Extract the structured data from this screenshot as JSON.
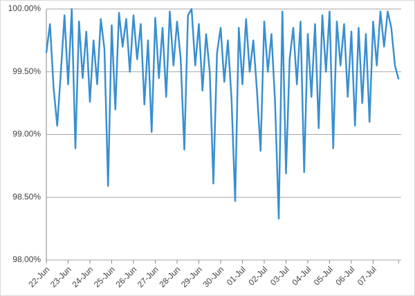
{
  "chart_data": {
    "type": "line",
    "categories": [
      "22-Jun",
      null,
      null,
      null,
      null,
      null,
      "23-Jun",
      null,
      null,
      null,
      null,
      null,
      "24-Jun",
      null,
      null,
      null,
      null,
      null,
      "25-Jun",
      null,
      null,
      null,
      null,
      null,
      "26-Jun",
      null,
      null,
      null,
      null,
      null,
      "27-Jun",
      null,
      null,
      null,
      null,
      null,
      "28-Jun",
      null,
      null,
      null,
      null,
      null,
      "29-Jun",
      null,
      null,
      null,
      null,
      null,
      "30-Jun",
      null,
      null,
      null,
      null,
      null,
      "01-Jul",
      null,
      null,
      null,
      null,
      null,
      "02-Jul",
      null,
      null,
      null,
      null,
      null,
      "03-Jul",
      null,
      null,
      null,
      null,
      null,
      "04-Jul",
      null,
      null,
      null,
      null,
      null,
      "05-Jul",
      null,
      null,
      null,
      null,
      null,
      "06-Jul",
      null,
      null,
      null,
      null,
      null,
      "07-Jul",
      null,
      null,
      null,
      null,
      null,
      null,
      null
    ],
    "series": [
      {
        "color": "#3a8fd0",
        "values": [
          99.65,
          99.88,
          99.37,
          99.07,
          99.5,
          99.95,
          99.4,
          100.0,
          98.89,
          99.9,
          99.45,
          99.82,
          99.26,
          99.75,
          99.4,
          99.92,
          99.68,
          98.59,
          99.87,
          99.2,
          99.97,
          99.7,
          99.92,
          99.5,
          99.95,
          99.6,
          99.88,
          99.24,
          99.75,
          99.02,
          99.93,
          99.45,
          99.85,
          99.3,
          99.98,
          99.55,
          99.9,
          99.6,
          98.88,
          99.95,
          100.0,
          99.55,
          99.88,
          99.35,
          99.8,
          99.5,
          98.61,
          99.65,
          99.85,
          99.42,
          99.75,
          99.28,
          98.47,
          99.85,
          99.4,
          99.92,
          99.5,
          99.75,
          99.35,
          98.87,
          99.9,
          99.5,
          99.8,
          99.25,
          98.33,
          99.98,
          98.69,
          99.6,
          99.85,
          99.4,
          99.9,
          98.7,
          99.8,
          99.3,
          99.88,
          99.05,
          99.95,
          99.5,
          99.98,
          98.89,
          99.9,
          99.55,
          99.88,
          99.3,
          99.82,
          99.07,
          99.85,
          99.25,
          99.8,
          99.1,
          99.9,
          99.55,
          99.98,
          99.7,
          99.98,
          99.85,
          99.55,
          99.44
        ]
      }
    ],
    "ylim": [
      98,
      100
    ],
    "yticks": [
      {
        "value": 98,
        "label": "98.00%"
      },
      {
        "value": 98.5,
        "label": "98.50%"
      },
      {
        "value": 99,
        "label": "99.00%"
      },
      {
        "value": 99.5,
        "label": "99.50%"
      },
      {
        "value": 100,
        "label": "100.00%"
      }
    ],
    "grid": true
  }
}
